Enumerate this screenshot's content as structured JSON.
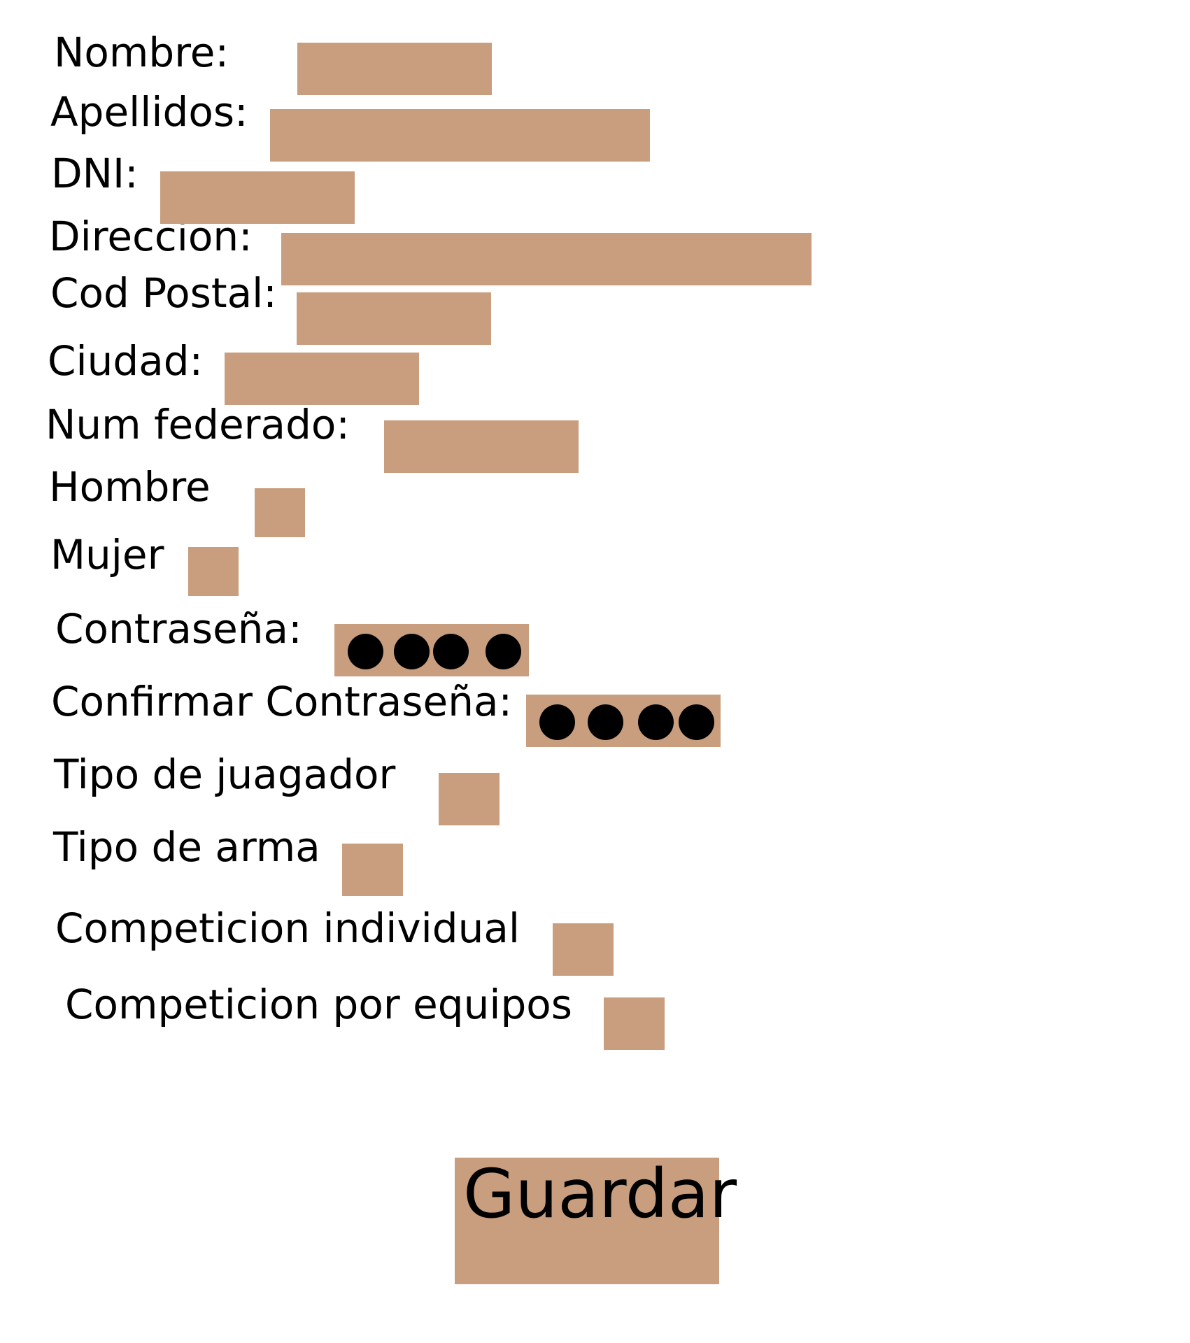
{
  "colors": {
    "field_background": "#c99e7e",
    "text": "#000000",
    "page_background": "#ffffff"
  },
  "form": {
    "nombre_label": "Nombre:",
    "apellidos_label": "Apellidos:",
    "dni_label": "DNI:",
    "direccion_label": "Direccion:",
    "cod_postal_label": "Cod Postal:",
    "ciudad_label": "Ciudad:",
    "num_federado_label": "Num federado:",
    "hombre_label": "Hombre",
    "mujer_label": "Mujer",
    "contrasena_label": "Contraseña:",
    "confirmar_contrasena_label": "Confirmar Contraseña:",
    "tipo_jugador_label": "Tipo de juagador",
    "tipo_arma_label": "Tipo de arma",
    "competicion_individual_label": "Competicion individual",
    "competicion_equipos_label": "Competicion por equipos"
  },
  "actions": {
    "save_label": "Guardar"
  }
}
